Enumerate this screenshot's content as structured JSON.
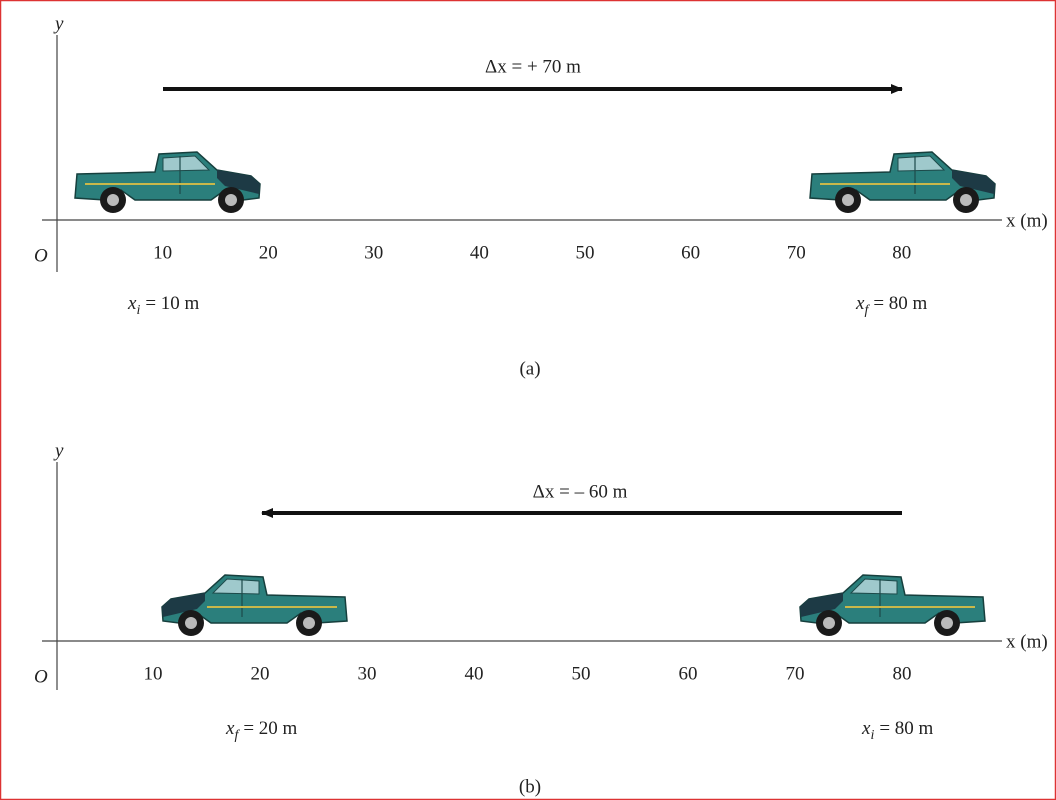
{
  "panels": [
    {
      "label": "(a)",
      "y_axis": "y",
      "origin": "O",
      "x_axis": "x (m)",
      "ticks": [
        10,
        20,
        30,
        40,
        50,
        60,
        70,
        80
      ],
      "displacement": "Δx = + 70 m",
      "initial": {
        "symbol": "x",
        "sub": "i",
        "text": "= 10 m"
      },
      "final": {
        "symbol": "x",
        "sub": "f",
        "text": "= 80 m"
      }
    },
    {
      "label": "(b)",
      "y_axis": "y",
      "origin": "O",
      "x_axis": "x (m)",
      "ticks": [
        10,
        20,
        30,
        40,
        50,
        60,
        70,
        80
      ],
      "displacement": "Δx = – 60 m",
      "final": {
        "symbol": "x",
        "sub": "f",
        "text": "= 20 m"
      },
      "initial": {
        "symbol": "x",
        "sub": "i",
        "text": "= 80 m"
      }
    }
  ]
}
